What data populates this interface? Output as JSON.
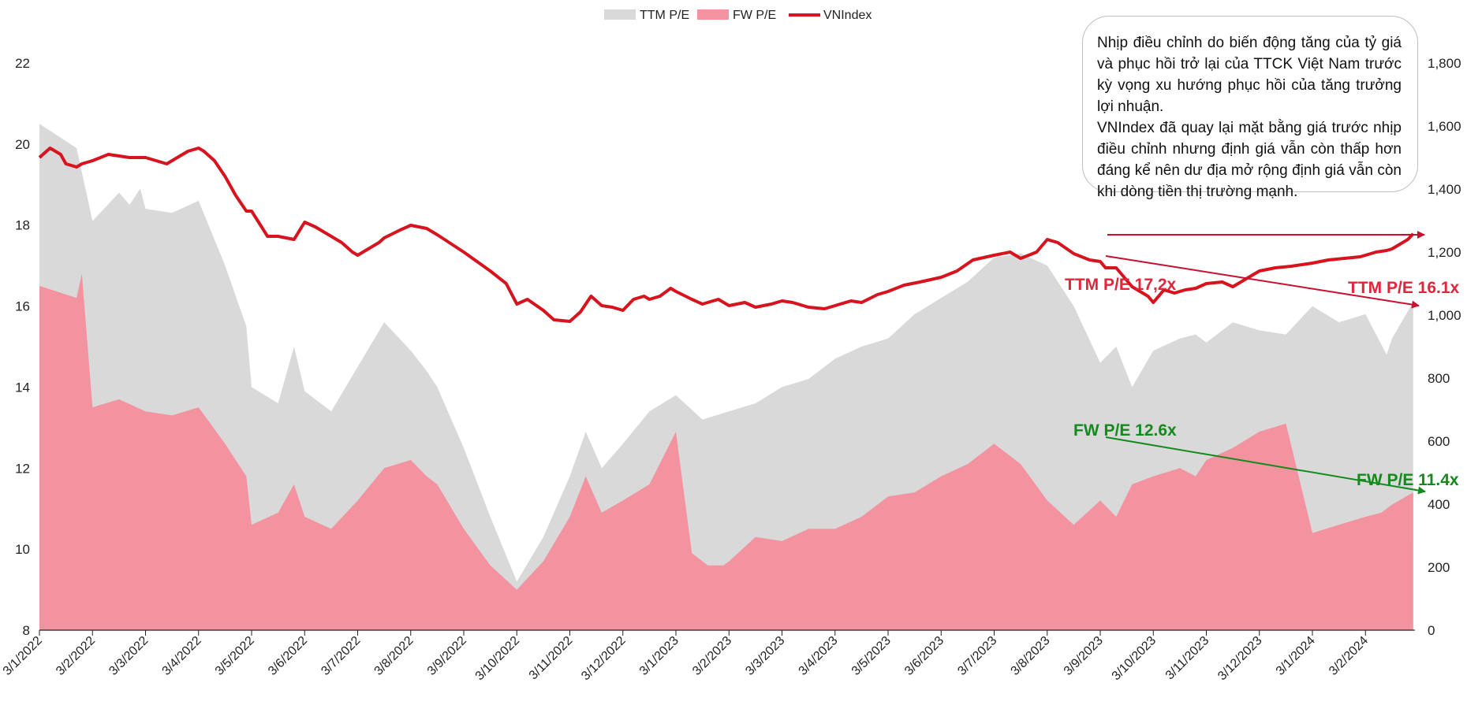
{
  "chart_data": {
    "type": "area",
    "legend": {
      "position": "top-center",
      "items": [
        {
          "label": "TTM P/E",
          "color": "#d9d9d9",
          "kind": "area"
        },
        {
          "label": "FW P/E",
          "color": "#f2939f",
          "kind": "area"
        },
        {
          "label": "VNIndex",
          "color": "#d7141e",
          "kind": "line"
        }
      ]
    },
    "x_ticks": [
      "3/1/2022",
      "3/2/2022",
      "3/3/2022",
      "3/4/2022",
      "3/5/2022",
      "3/6/2022",
      "3/7/2022",
      "3/8/2022",
      "3/9/2022",
      "3/10/2022",
      "3/11/2022",
      "3/12/2022",
      "3/1/2023",
      "3/2/2023",
      "3/3/2023",
      "3/4/2023",
      "3/5/2023",
      "3/6/2023",
      "3/7/2023",
      "3/8/2023",
      "3/9/2023",
      "3/10/2023",
      "3/11/2023",
      "3/12/2023",
      "3/1/2024",
      "3/2/2024"
    ],
    "y_left": {
      "min": 8,
      "max": 22,
      "ticks": [
        "8",
        "10",
        "12",
        "14",
        "16",
        "18",
        "20",
        "22"
      ]
    },
    "y_right": {
      "min": 0,
      "max": 1800,
      "ticks": [
        "0",
        "200",
        "400",
        "600",
        "800",
        "1,000",
        "1,200",
        "1,400",
        "1,600",
        "1,800"
      ]
    },
    "series": [
      {
        "name": "TTM P/E",
        "axis": "left",
        "type": "area",
        "color": "#d9d9d9",
        "x": [
          0,
          0.7,
          1,
          1.5,
          1.7,
          1.9,
          2,
          2.5,
          3,
          3.5,
          3.9,
          4,
          4.5,
          4.8,
          5,
          5.5,
          6,
          6.5,
          7,
          7.3,
          7.5,
          8,
          8.5,
          9,
          9.5,
          10,
          10.3,
          10.6,
          11,
          11.5,
          12,
          12.5,
          13,
          13.5,
          14,
          14.5,
          15,
          15.5,
          16,
          16.5,
          17,
          17.5,
          18,
          18.5,
          19,
          19.5,
          20,
          20.3,
          20.6,
          21,
          21.5,
          21.8,
          22,
          22.5,
          23,
          23.5,
          24,
          24.5,
          25,
          25.4,
          25.5,
          25.9
        ],
        "y": [
          20.5,
          19.9,
          18.1,
          18.8,
          18.5,
          18.9,
          18.4,
          18.3,
          18.6,
          17.0,
          15.5,
          14.0,
          13.6,
          15.0,
          13.9,
          13.4,
          14.5,
          15.6,
          14.9,
          14.4,
          14.0,
          12.5,
          10.8,
          9.2,
          10.3,
          11.8,
          12.9,
          12.0,
          12.6,
          13.4,
          13.8,
          13.2,
          13.4,
          13.6,
          14.0,
          14.2,
          14.7,
          15.0,
          15.2,
          15.8,
          16.2,
          16.6,
          17.2,
          17.3,
          17.0,
          16.0,
          14.6,
          15.0,
          14.0,
          14.9,
          15.2,
          15.3,
          15.1,
          15.6,
          15.4,
          15.3,
          16.0,
          15.6,
          15.8,
          14.8,
          15.2,
          16.1
        ]
      },
      {
        "name": "FW P/E",
        "axis": "left",
        "type": "area",
        "color": "#f2939f",
        "x": [
          0,
          0.7,
          0.8,
          1,
          1.5,
          2,
          2.5,
          3,
          3.5,
          3.9,
          4,
          4.5,
          4.8,
          5,
          5.5,
          6,
          6.5,
          7,
          7.3,
          7.5,
          8,
          8.5,
          9,
          9.5,
          10,
          10.3,
          10.6,
          11,
          11.5,
          12,
          12.3,
          12.6,
          12.9,
          13,
          13.5,
          14,
          14.5,
          15,
          15.5,
          16,
          16.5,
          17,
          17.5,
          18,
          18.5,
          19,
          19.5,
          20,
          20.3,
          20.6,
          21,
          21.5,
          21.8,
          22,
          22.5,
          23,
          23.5,
          24,
          24.5,
          25,
          25.3,
          25.4,
          25.5,
          25.9
        ],
        "y": [
          16.5,
          16.2,
          16.8,
          13.5,
          13.7,
          13.4,
          13.3,
          13.5,
          12.6,
          11.8,
          10.6,
          10.9,
          11.6,
          10.8,
          10.5,
          11.2,
          12.0,
          12.2,
          11.8,
          11.6,
          10.5,
          9.6,
          9.0,
          9.7,
          10.8,
          11.8,
          10.9,
          11.2,
          11.6,
          12.9,
          9.9,
          9.6,
          9.6,
          9.7,
          10.3,
          10.2,
          10.5,
          10.5,
          10.8,
          11.3,
          11.4,
          11.8,
          12.1,
          12.6,
          12.1,
          11.2,
          10.6,
          11.2,
          10.8,
          11.6,
          11.8,
          12.0,
          11.8,
          12.2,
          12.5,
          12.9,
          13.1,
          10.4,
          10.6,
          10.8,
          10.9,
          11.0,
          11.1,
          11.4
        ]
      },
      {
        "name": "VNIndex",
        "axis": "right",
        "type": "line",
        "color": "#d7141e",
        "x": [
          0,
          0.2,
          0.4,
          0.5,
          0.7,
          0.8,
          1,
          1.3,
          1.7,
          2,
          2.2,
          2.4,
          2.6,
          2.8,
          3,
          3.1,
          3.3,
          3.5,
          3.7,
          3.9,
          4,
          4.3,
          4.5,
          4.8,
          5,
          5.2,
          5.5,
          5.7,
          5.9,
          6,
          6.2,
          6.4,
          6.5,
          6.8,
          7,
          7.3,
          7.5,
          8,
          8.5,
          8.8,
          9,
          9.2,
          9.5,
          9.7,
          10,
          10.2,
          10.4,
          10.6,
          10.8,
          11,
          11.2,
          11.4,
          11.5,
          11.7,
          11.9,
          12,
          12.3,
          12.5,
          12.8,
          13,
          13.3,
          13.5,
          13.8,
          14,
          14.2,
          14.5,
          14.8,
          15,
          15.3,
          15.5,
          15.8,
          16,
          16.3,
          16.6,
          17,
          17.3,
          17.6,
          18,
          18.3,
          18.5,
          18.8,
          19,
          19.2,
          19.5,
          19.8,
          20,
          20.1,
          20.3,
          20.6,
          20.9,
          21,
          21.2,
          21.4,
          21.6,
          21.8,
          22,
          22.3,
          22.5,
          22.8,
          23,
          23.3,
          23.6,
          24,
          24.3,
          24.6,
          24.9,
          25,
          25.2,
          25.4,
          25.5,
          25.6,
          25.8,
          25.9
        ],
        "y": [
          1500,
          1530,
          1510,
          1480,
          1470,
          1480,
          1490,
          1510,
          1500,
          1500,
          1490,
          1480,
          1500,
          1520,
          1530,
          1520,
          1490,
          1440,
          1380,
          1330,
          1330,
          1250,
          1250,
          1240,
          1295,
          1280,
          1250,
          1230,
          1200,
          1190,
          1210,
          1230,
          1245,
          1270,
          1285,
          1275,
          1255,
          1200,
          1140,
          1100,
          1035,
          1050,
          1015,
          985,
          980,
          1010,
          1060,
          1030,
          1025,
          1015,
          1050,
          1060,
          1050,
          1060,
          1085,
          1075,
          1050,
          1035,
          1050,
          1030,
          1040,
          1025,
          1035,
          1045,
          1040,
          1025,
          1020,
          1030,
          1045,
          1040,
          1065,
          1075,
          1095,
          1105,
          1120,
          1140,
          1175,
          1190,
          1200,
          1180,
          1200,
          1240,
          1230,
          1195,
          1175,
          1170,
          1150,
          1150,
          1090,
          1060,
          1040,
          1080,
          1070,
          1080,
          1085,
          1100,
          1105,
          1090,
          1120,
          1140,
          1150,
          1155,
          1165,
          1175,
          1180,
          1185,
          1190,
          1200,
          1205,
          1210,
          1220,
          1240,
          1258
        ]
      }
    ],
    "annotations": [
      {
        "text": "TTM P/E 17,2x",
        "color": "#e1253a"
      },
      {
        "text": "TTM P/E 16.1x",
        "color": "#e1253a"
      },
      {
        "text": "FW P/E 12.6x",
        "color": "#138a1c"
      },
      {
        "text": "FW P/E 11.4x",
        "color": "#138a1c"
      }
    ],
    "note": [
      "Nhịp điều chỉnh do biến động tăng của tỷ giá và phục hồi trở lại của TTCK Việt Nam trước kỳ vọng xu hướng phục hồi của tăng trưởng lợi nhuận.",
      "VNIndex đã quay lại mặt bằng giá trước nhịp điều chỉnh nhưng định giá vẫn còn thấp hơn đáng kể nên dư địa mở rộng định giá vẫn còn khi dòng tiền thị trường mạnh."
    ]
  }
}
